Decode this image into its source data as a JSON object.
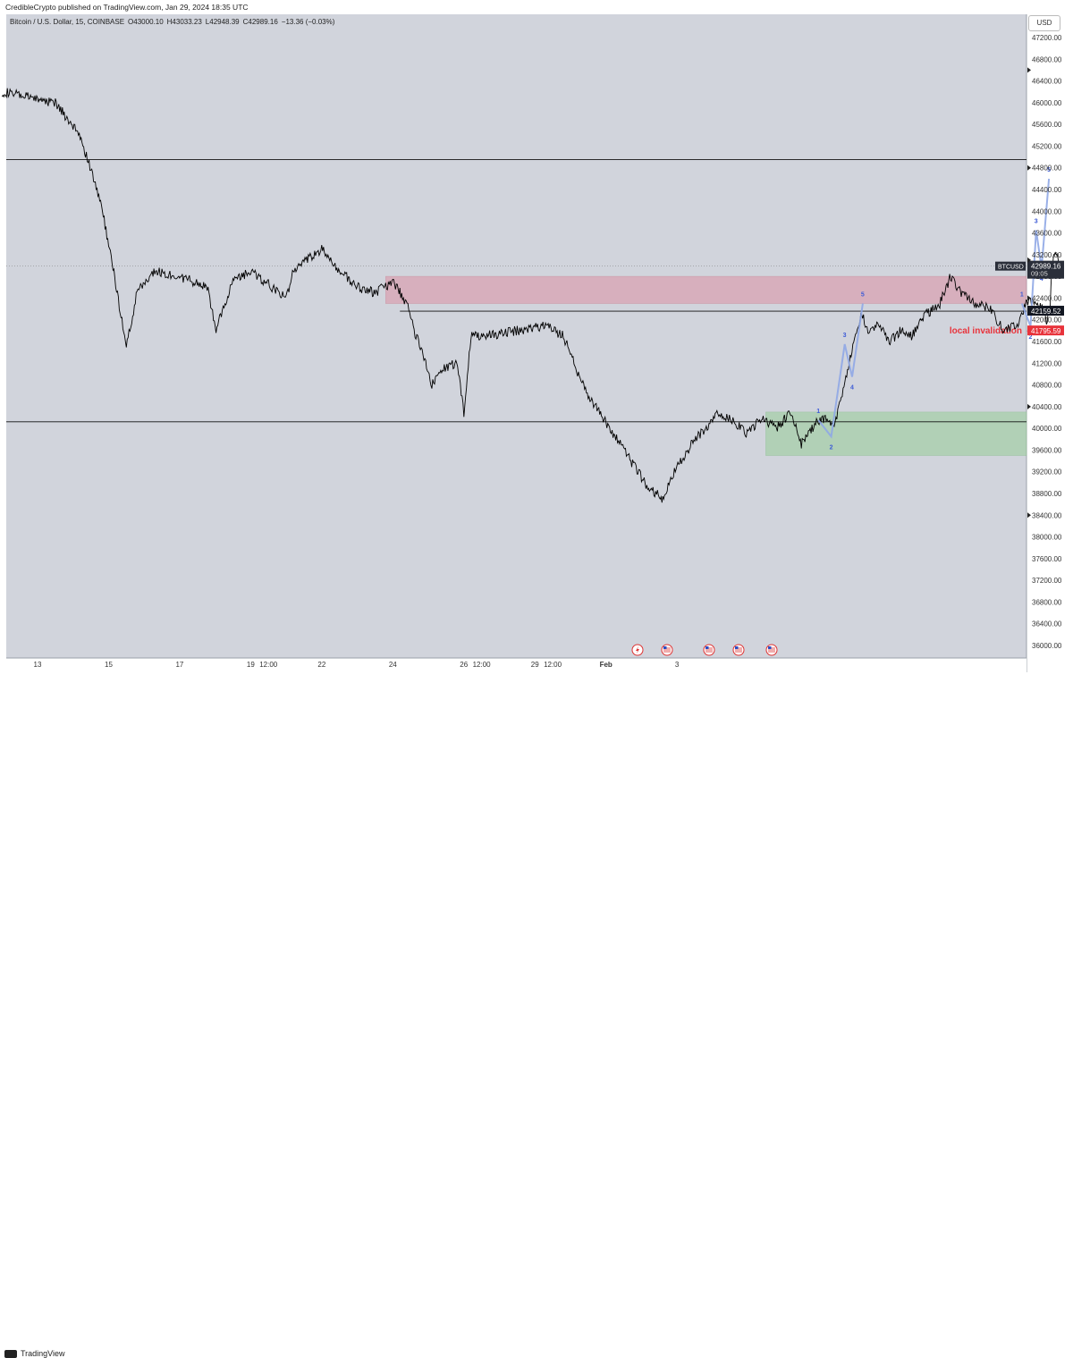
{
  "header": {
    "published": "CredibleCrypto published on TradingView.com, Jan 29, 2024 18:35 UTC"
  },
  "footer": {
    "brand": "TradingView"
  },
  "currency": "USD",
  "legend": {
    "symbol": "Bitcoin / U.S. Dollar, 15, COINBASE",
    "open": "O43000.10",
    "high": "H43033.23",
    "low": "L42948.39",
    "close": "C42989.16",
    "change": "−13.36 (−0.03%)"
  },
  "colors": {
    "background": "#d1d4dc",
    "candle": "#000000",
    "wave": "#8fa7e6",
    "wave_label": "#3d5bd6",
    "supply_zone": "#d9a3b3",
    "demand_zone": "#a7cfaa",
    "invalidation": "#e8333b"
  },
  "chart_data": {
    "type": "line",
    "title": "",
    "ylim": [
      35950,
      47500
    ],
    "y_ticks": [
      "47200.00",
      "46800.00",
      "46400.00",
      "46000.00",
      "45600.00",
      "45200.00",
      "44800.00",
      "44400.00",
      "44000.00",
      "43600.00",
      "43200.00",
      "42800.00",
      "42400.00",
      "42000.00",
      "41600.00",
      "41200.00",
      "40800.00",
      "40400.00",
      "40000.00",
      "39600.00",
      "39200.00",
      "38800.00",
      "38400.00",
      "38000.00",
      "37600.00",
      "37200.00",
      "36800.00",
      "36400.00",
      "36000.00"
    ],
    "x_ticks": [
      "13",
      "15",
      "17",
      "19",
      "12:00",
      "22",
      "24",
      "26",
      "12:00",
      "29",
      "12:00",
      "Feb",
      "3"
    ],
    "series": [
      {
        "values": [
          [
            0,
            46200
          ],
          [
            1.5,
            46000
          ],
          [
            2.2,
            45400
          ],
          [
            2.8,
            44100
          ],
          [
            3.1,
            43050
          ],
          [
            3.5,
            41500
          ],
          [
            3.8,
            42500
          ],
          [
            4.3,
            42900
          ],
          [
            5,
            42800
          ],
          [
            5.8,
            42600
          ],
          [
            6,
            41800
          ],
          [
            6.5,
            42700
          ],
          [
            7,
            42900
          ],
          [
            7.5,
            42650
          ],
          [
            8,
            42400
          ],
          [
            8.2,
            42900
          ],
          [
            9,
            43300
          ],
          [
            9.5,
            42900
          ],
          [
            10,
            42600
          ],
          [
            10.5,
            42500
          ],
          [
            11,
            42700
          ],
          [
            11.4,
            42300
          ],
          [
            11.6,
            41800
          ],
          [
            11.9,
            41300
          ],
          [
            12.1,
            40800
          ],
          [
            12.4,
            41100
          ],
          [
            12.8,
            41200
          ],
          [
            13,
            40300
          ],
          [
            13.2,
            41700
          ],
          [
            13.6,
            41700
          ],
          [
            14.5,
            41800
          ],
          [
            15.3,
            41900
          ],
          [
            15.8,
            41700
          ],
          [
            16.1,
            41200
          ],
          [
            16.5,
            40600
          ],
          [
            17,
            40100
          ],
          [
            17.4,
            39700
          ],
          [
            17.8,
            39300
          ],
          [
            18.2,
            38900
          ],
          [
            18.6,
            38700
          ],
          [
            19,
            39300
          ],
          [
            19.4,
            39700
          ],
          [
            19.8,
            40000
          ],
          [
            20.2,
            40300
          ],
          [
            20.6,
            40100
          ],
          [
            21,
            39900
          ],
          [
            21.4,
            40200
          ],
          [
            21.8,
            40000
          ],
          [
            22.2,
            40300
          ],
          [
            22.5,
            39700
          ],
          [
            22.9,
            40100
          ],
          [
            23.2,
            40200
          ],
          [
            23.4,
            40000
          ],
          [
            23.6,
            40500
          ],
          [
            23.8,
            41100
          ],
          [
            24,
            41600
          ],
          [
            24.2,
            42100
          ],
          [
            24.4,
            41800
          ],
          [
            24.7,
            41900
          ],
          [
            25,
            41600
          ],
          [
            25.3,
            41800
          ],
          [
            25.6,
            41700
          ],
          [
            26,
            42100
          ],
          [
            26.4,
            42300
          ],
          [
            26.7,
            42800
          ],
          [
            27,
            42500
          ],
          [
            27.4,
            42300
          ],
          [
            27.8,
            42200
          ],
          [
            28.2,
            41800
          ],
          [
            28.6,
            41900
          ],
          [
            28.9,
            42400
          ],
          [
            29.1,
            42300
          ],
          [
            29.3,
            42200
          ],
          [
            29.4,
            42000
          ],
          [
            29.5,
            42200
          ],
          [
            29.55,
            42950
          ],
          [
            29.65,
            43300
          ],
          [
            29.8,
            42950
          ]
        ],
        "x_unit": "days since Jan 12 00:00 (tick '13' = 1.0)"
      }
    ],
    "wave_projection": [
      {
        "label": "1",
        "x": 22.98,
        "y": 40150
      },
      {
        "label": "2",
        "x": 23.34,
        "y": 39850
      },
      {
        "label": "3",
        "x": 23.72,
        "y": 41550
      },
      {
        "label": "4",
        "x": 23.93,
        "y": 40950
      },
      {
        "label": "5",
        "x": 24.23,
        "y": 42300
      },
      {
        "label": "1",
        "x": 28.71,
        "y": 42300
      },
      {
        "label": "2",
        "x": 28.95,
        "y": 41880
      },
      {
        "label": "3",
        "x": 29.11,
        "y": 43650
      },
      {
        "label": "4",
        "x": 29.26,
        "y": 42950
      },
      {
        "label": "5",
        "x": 29.47,
        "y": 44600
      }
    ],
    "levels": [
      {
        "price": 44950,
        "x_start": 0.0
      },
      {
        "price": 42159.52,
        "label": "42159.52",
        "x_start": 11.2
      },
      {
        "price": 40120,
        "x_start": 0.0
      },
      {
        "price": 41795.59,
        "label": "41795.59",
        "x_start": 29.3,
        "dashed": true,
        "annotation": "local invalidation"
      }
    ],
    "zones": [
      {
        "kind": "supply",
        "y_top": 42800,
        "y_bottom": 42300,
        "x_start": 10.8,
        "x_end": 43.4
      },
      {
        "kind": "demand",
        "y_top": 40300,
        "y_bottom": 39500,
        "x_start": 21.5,
        "x_end": 47.5
      }
    ],
    "current_price": {
      "symbol": "BTCUSD",
      "price": "42989.16",
      "countdown": "09:05"
    },
    "event_icons": [
      "flash-icon",
      "us-flag-icon",
      "us-flag-icon",
      "us-flag-icon",
      "us-flag-icon"
    ]
  }
}
